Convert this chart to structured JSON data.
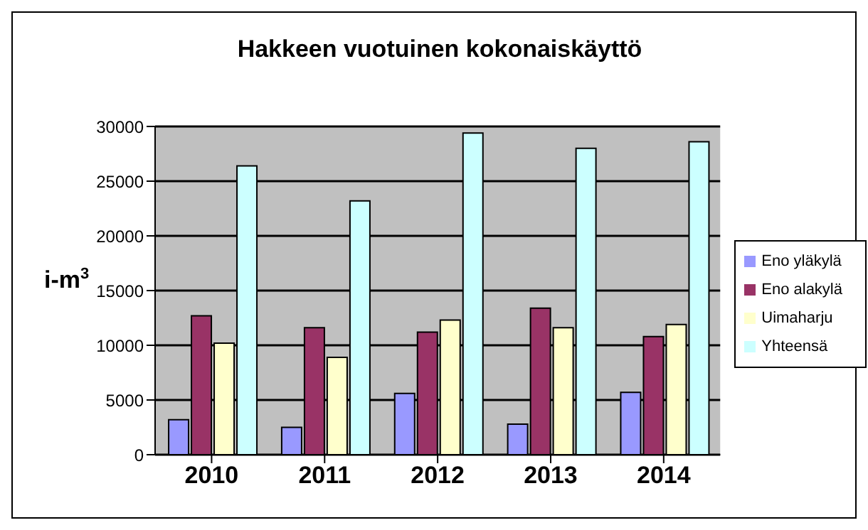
{
  "chart_data": {
    "type": "bar",
    "title": "Hakkeen vuotuinen kokonaiskäyttö",
    "ylabel": "i-m$^{3}$",
    "categories": [
      "2010",
      "2011",
      "2012",
      "2013",
      "2014"
    ],
    "series": [
      {
        "name": "Eno yläkylä",
        "color": "#9999ff",
        "values": [
          3200,
          2500,
          5600,
          2800,
          5700
        ]
      },
      {
        "name": "Eno alakylä",
        "color": "#993366",
        "values": [
          12700,
          11600,
          11200,
          13400,
          10800
        ]
      },
      {
        "name": "Uimaharju",
        "color": "#ffffcc",
        "values": [
          10200,
          8900,
          12300,
          11600,
          11900
        ]
      },
      {
        "name": "Yhteensä",
        "color": "#ccffff",
        "values": [
          26400,
          23200,
          29400,
          28000,
          28600
        ]
      }
    ],
    "ylim": [
      0,
      30000
    ],
    "yticks": [
      0,
      5000,
      10000,
      15000,
      20000,
      25000,
      30000
    ],
    "grid": "y",
    "legend": "right"
  }
}
